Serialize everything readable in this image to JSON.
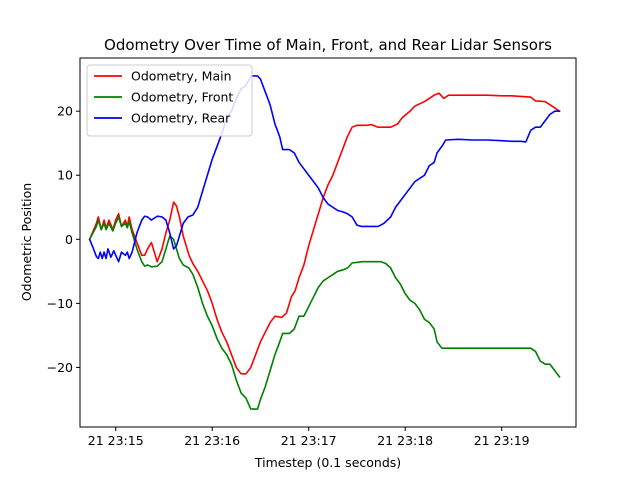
{
  "chart_data": {
    "type": "line",
    "title": "Odometry Over Time of Main, Front, and Rear Lidar Sensors",
    "xlabel": "Timestep (0.1 seconds)",
    "ylabel": "Odometric Position",
    "x_unit": "minutes",
    "xlim": [
      14.63,
      19.77
    ],
    "ylim": [
      -29.3,
      28.3
    ],
    "x_ticks": [
      {
        "value": 15,
        "label": "21 23:15"
      },
      {
        "value": 16,
        "label": "21 23:16"
      },
      {
        "value": 17,
        "label": "21 23:17"
      },
      {
        "value": 18,
        "label": "21 23:18"
      },
      {
        "value": 19,
        "label": "21 23:19"
      }
    ],
    "y_ticks": [
      {
        "value": -20,
        "label": "−20"
      },
      {
        "value": -10,
        "label": "−10"
      },
      {
        "value": 0,
        "label": "0"
      },
      {
        "value": 10,
        "label": "10"
      },
      {
        "value": 20,
        "label": "20"
      }
    ],
    "grid": false,
    "legend_position": "top-left",
    "series": [
      {
        "name": "Odometry, Main",
        "color": "#ff0000",
        "points": [
          [
            14.73,
            0
          ],
          [
            14.8,
            2.5
          ],
          [
            14.82,
            3.5
          ],
          [
            14.85,
            1.5
          ],
          [
            14.88,
            3
          ],
          [
            14.9,
            1.7
          ],
          [
            14.93,
            3
          ],
          [
            14.97,
            1.5
          ],
          [
            15.0,
            3
          ],
          [
            15.03,
            4
          ],
          [
            15.06,
            2
          ],
          [
            15.1,
            3
          ],
          [
            15.12,
            2
          ],
          [
            15.14,
            3.5
          ],
          [
            15.17,
            1.5
          ],
          [
            15.22,
            -0.5
          ],
          [
            15.27,
            -2.5
          ],
          [
            15.3,
            -2.5
          ],
          [
            15.33,
            -1.5
          ],
          [
            15.37,
            -0.5
          ],
          [
            15.43,
            -3.5
          ],
          [
            15.48,
            -1.5
          ],
          [
            15.52,
            1
          ],
          [
            15.56,
            3
          ],
          [
            15.6,
            5.8
          ],
          [
            15.63,
            5.2
          ],
          [
            15.66,
            3.5
          ],
          [
            15.7,
            0.5
          ],
          [
            15.73,
            -1
          ],
          [
            15.76,
            -2.5
          ],
          [
            15.8,
            -3.8
          ],
          [
            15.85,
            -5
          ],
          [
            15.9,
            -6.5
          ],
          [
            15.95,
            -8
          ],
          [
            16.0,
            -10
          ],
          [
            16.05,
            -12.5
          ],
          [
            16.1,
            -14.5
          ],
          [
            16.15,
            -16
          ],
          [
            16.2,
            -18
          ],
          [
            16.25,
            -20
          ],
          [
            16.3,
            -21
          ],
          [
            16.35,
            -21
          ],
          [
            16.4,
            -20
          ],
          [
            16.45,
            -18
          ],
          [
            16.5,
            -16
          ],
          [
            16.55,
            -14.5
          ],
          [
            16.6,
            -13
          ],
          [
            16.65,
            -12
          ],
          [
            16.72,
            -12.2
          ],
          [
            16.77,
            -11.5
          ],
          [
            16.82,
            -9
          ],
          [
            16.86,
            -8
          ],
          [
            16.9,
            -6
          ],
          [
            16.95,
            -4
          ],
          [
            17.0,
            -1
          ],
          [
            17.05,
            1.5
          ],
          [
            17.1,
            4
          ],
          [
            17.15,
            6.5
          ],
          [
            17.2,
            8.5
          ],
          [
            17.25,
            10
          ],
          [
            17.3,
            12
          ],
          [
            17.35,
            14
          ],
          [
            17.4,
            16
          ],
          [
            17.45,
            17.5
          ],
          [
            17.5,
            17.8
          ],
          [
            17.6,
            17.8
          ],
          [
            17.65,
            17.9
          ],
          [
            17.72,
            17.5
          ],
          [
            17.85,
            17.5
          ],
          [
            17.92,
            18
          ],
          [
            17.97,
            19
          ],
          [
            18.05,
            20
          ],
          [
            18.1,
            20.8
          ],
          [
            18.2,
            21.5
          ],
          [
            18.3,
            22.5
          ],
          [
            18.35,
            22.8
          ],
          [
            18.4,
            22
          ],
          [
            18.45,
            22.5
          ],
          [
            18.55,
            22.5
          ],
          [
            18.65,
            22.5
          ],
          [
            18.75,
            22.5
          ],
          [
            18.85,
            22.5
          ],
          [
            19.0,
            22.4
          ],
          [
            19.1,
            22.4
          ],
          [
            19.2,
            22.3
          ],
          [
            19.3,
            22.2
          ],
          [
            19.35,
            21.6
          ],
          [
            19.45,
            21.5
          ],
          [
            19.55,
            20.5
          ],
          [
            19.6,
            20
          ]
        ]
      },
      {
        "name": "Odometry, Front",
        "color": "#008000",
        "points": [
          [
            14.73,
            0
          ],
          [
            14.8,
            2
          ],
          [
            14.82,
            3
          ],
          [
            14.85,
            1.5
          ],
          [
            14.88,
            2.5
          ],
          [
            14.9,
            1.5
          ],
          [
            14.93,
            2.5
          ],
          [
            14.97,
            1.3
          ],
          [
            15.0,
            2.5
          ],
          [
            15.03,
            3.5
          ],
          [
            15.06,
            2
          ],
          [
            15.1,
            2.5
          ],
          [
            15.12,
            1.8
          ],
          [
            15.14,
            2.8
          ],
          [
            15.17,
            1
          ],
          [
            15.22,
            -1.5
          ],
          [
            15.27,
            -3.5
          ],
          [
            15.3,
            -4.2
          ],
          [
            15.33,
            -4
          ],
          [
            15.37,
            -4.3
          ],
          [
            15.43,
            -4.2
          ],
          [
            15.48,
            -3.5
          ],
          [
            15.52,
            -1.5
          ],
          [
            15.56,
            0.5
          ],
          [
            15.6,
            0
          ],
          [
            15.63,
            -1.5
          ],
          [
            15.66,
            -3
          ],
          [
            15.7,
            -4
          ],
          [
            15.76,
            -4.5
          ],
          [
            15.8,
            -5.5
          ],
          [
            15.85,
            -7.5
          ],
          [
            15.9,
            -10
          ],
          [
            15.95,
            -12
          ],
          [
            16.0,
            -13.5
          ],
          [
            16.05,
            -15.5
          ],
          [
            16.1,
            -17
          ],
          [
            16.15,
            -18
          ],
          [
            16.2,
            -19.5
          ],
          [
            16.25,
            -22
          ],
          [
            16.3,
            -24
          ],
          [
            16.35,
            -24.8
          ],
          [
            16.4,
            -26.5
          ],
          [
            16.47,
            -26.5
          ],
          [
            16.5,
            -25
          ],
          [
            16.55,
            -23
          ],
          [
            16.6,
            -20.5
          ],
          [
            16.65,
            -18
          ],
          [
            16.7,
            -16
          ],
          [
            16.73,
            -14.7
          ],
          [
            16.8,
            -14.7
          ],
          [
            16.85,
            -14
          ],
          [
            16.9,
            -12
          ],
          [
            16.95,
            -12
          ],
          [
            17.0,
            -10.5
          ],
          [
            17.05,
            -9
          ],
          [
            17.1,
            -7.5
          ],
          [
            17.15,
            -6.5
          ],
          [
            17.2,
            -6
          ],
          [
            17.25,
            -5.5
          ],
          [
            17.3,
            -5
          ],
          [
            17.35,
            -4.8
          ],
          [
            17.4,
            -4.5
          ],
          [
            17.45,
            -3.7
          ],
          [
            17.55,
            -3.5
          ],
          [
            17.65,
            -3.5
          ],
          [
            17.75,
            -3.5
          ],
          [
            17.8,
            -3.8
          ],
          [
            17.85,
            -4.5
          ],
          [
            17.9,
            -6
          ],
          [
            17.95,
            -7
          ],
          [
            18.0,
            -8.5
          ],
          [
            18.05,
            -9.5
          ],
          [
            18.1,
            -10
          ],
          [
            18.15,
            -11
          ],
          [
            18.2,
            -12.5
          ],
          [
            18.25,
            -13
          ],
          [
            18.3,
            -14
          ],
          [
            18.33,
            -16
          ],
          [
            18.38,
            -17
          ],
          [
            18.45,
            -17
          ],
          [
            18.55,
            -17
          ],
          [
            18.65,
            -17
          ],
          [
            18.75,
            -17
          ],
          [
            18.85,
            -17
          ],
          [
            19.0,
            -17
          ],
          [
            19.1,
            -17
          ],
          [
            19.2,
            -17
          ],
          [
            19.3,
            -17
          ],
          [
            19.35,
            -17.5
          ],
          [
            19.4,
            -19
          ],
          [
            19.45,
            -19.5
          ],
          [
            19.5,
            -19.5
          ],
          [
            19.55,
            -20.5
          ],
          [
            19.6,
            -21.5
          ]
        ]
      },
      {
        "name": "Odometry, Rear",
        "color": "#0000ff",
        "points": [
          [
            14.73,
            0
          ],
          [
            14.77,
            -1.5
          ],
          [
            14.8,
            -2.7
          ],
          [
            14.82,
            -3
          ],
          [
            14.84,
            -2
          ],
          [
            14.86,
            -3
          ],
          [
            14.88,
            -2
          ],
          [
            14.9,
            -3
          ],
          [
            14.92,
            -1.5
          ],
          [
            14.95,
            -2.8
          ],
          [
            14.98,
            -1.8
          ],
          [
            15.0,
            -2.5
          ],
          [
            15.03,
            -3.5
          ],
          [
            15.06,
            -2
          ],
          [
            15.1,
            -2.5
          ],
          [
            15.12,
            -2
          ],
          [
            15.14,
            -3
          ],
          [
            15.17,
            -2
          ],
          [
            15.22,
            1
          ],
          [
            15.27,
            3
          ],
          [
            15.3,
            3.6
          ],
          [
            15.33,
            3.5
          ],
          [
            15.37,
            3
          ],
          [
            15.43,
            3.6
          ],
          [
            15.48,
            3.5
          ],
          [
            15.52,
            3
          ],
          [
            15.56,
            1
          ],
          [
            15.6,
            -1.5
          ],
          [
            15.63,
            -1
          ],
          [
            15.66,
            0.5
          ],
          [
            15.7,
            2.5
          ],
          [
            15.75,
            3.5
          ],
          [
            15.8,
            3.8
          ],
          [
            15.85,
            5
          ],
          [
            15.9,
            7.5
          ],
          [
            15.95,
            10
          ],
          [
            16.0,
            12.5
          ],
          [
            16.05,
            14.5
          ],
          [
            16.1,
            16.5
          ],
          [
            16.15,
            19
          ],
          [
            16.2,
            20
          ],
          [
            16.25,
            22
          ],
          [
            16.3,
            23.5
          ],
          [
            16.35,
            24
          ],
          [
            16.4,
            25.5
          ],
          [
            16.47,
            25.5
          ],
          [
            16.5,
            25
          ],
          [
            16.55,
            23
          ],
          [
            16.6,
            21
          ],
          [
            16.65,
            18
          ],
          [
            16.7,
            16
          ],
          [
            16.73,
            14
          ],
          [
            16.8,
            14
          ],
          [
            16.85,
            13.5
          ],
          [
            16.9,
            12
          ],
          [
            16.95,
            11
          ],
          [
            17.0,
            10
          ],
          [
            17.05,
            9
          ],
          [
            17.1,
            8
          ],
          [
            17.15,
            6.5
          ],
          [
            17.2,
            5.5
          ],
          [
            17.25,
            5
          ],
          [
            17.3,
            4.5
          ],
          [
            17.35,
            4.3
          ],
          [
            17.4,
            4
          ],
          [
            17.45,
            3.5
          ],
          [
            17.5,
            2.2
          ],
          [
            17.55,
            2
          ],
          [
            17.65,
            2
          ],
          [
            17.72,
            2
          ],
          [
            17.78,
            2.5
          ],
          [
            17.85,
            3.5
          ],
          [
            17.9,
            5
          ],
          [
            17.95,
            6
          ],
          [
            18.0,
            7
          ],
          [
            18.05,
            8
          ],
          [
            18.1,
            9
          ],
          [
            18.15,
            9.5
          ],
          [
            18.2,
            10
          ],
          [
            18.25,
            11.5
          ],
          [
            18.3,
            12
          ],
          [
            18.33,
            13.5
          ],
          [
            18.38,
            14.5
          ],
          [
            18.42,
            15.5
          ],
          [
            18.55,
            15.6
          ],
          [
            18.7,
            15.5
          ],
          [
            18.85,
            15.5
          ],
          [
            19.0,
            15.4
          ],
          [
            19.1,
            15.3
          ],
          [
            19.2,
            15.3
          ],
          [
            19.25,
            15.2
          ],
          [
            19.3,
            17
          ],
          [
            19.35,
            17.5
          ],
          [
            19.4,
            17.5
          ],
          [
            19.45,
            18.5
          ],
          [
            19.5,
            19.5
          ],
          [
            19.55,
            20
          ],
          [
            19.6,
            20
          ]
        ]
      }
    ]
  }
}
